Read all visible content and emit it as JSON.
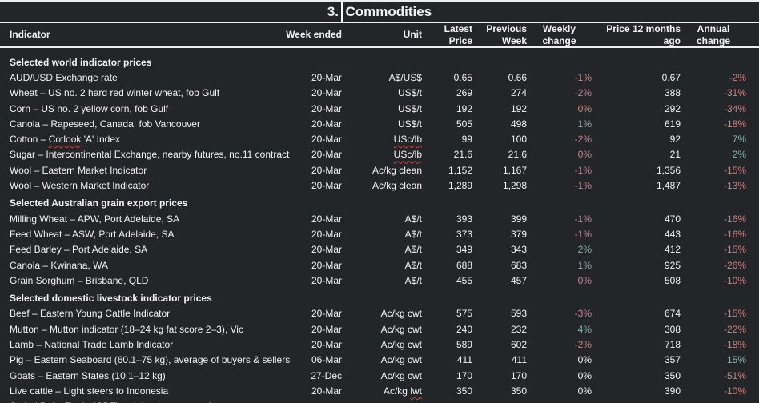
{
  "title": {
    "prefix": "3.",
    "rest": "Commodities"
  },
  "colors": {
    "background": "#232629",
    "text": "#f2f2f2",
    "rule": "#ededed",
    "negative": "#cd8080",
    "positive": "#85b3b0",
    "neutral": "#f2f2f2",
    "squiggle": "#bf4a42",
    "caret": "#ffffff"
  },
  "columns": [
    {
      "key": "indicator",
      "lines": [
        "Indicator"
      ],
      "align": "left"
    },
    {
      "key": "week",
      "lines": [
        "Week ended"
      ],
      "align": "right"
    },
    {
      "key": "unit",
      "lines": [
        "Unit"
      ],
      "align": "right"
    },
    {
      "key": "latest",
      "lines": [
        "Latest",
        "Price"
      ],
      "align": "right"
    },
    {
      "key": "previous",
      "lines": [
        "Previous",
        "Week"
      ],
      "align": "right"
    },
    {
      "key": "weekly",
      "lines": [
        "Weekly",
        "change"
      ],
      "align": "right",
      "header_align": "center"
    },
    {
      "key": "price12",
      "lines": [
        "Price 12 months",
        "ago"
      ],
      "align": "right"
    },
    {
      "key": "annual",
      "lines": [
        "Annual",
        "change"
      ],
      "align": "right",
      "header_align": "center"
    }
  ],
  "rows": [
    {
      "type": "section",
      "label": "Selected world indicator prices"
    },
    {
      "type": "data",
      "indicator": "AUD/USD Exchange rate",
      "week": "20-Mar",
      "unit": "A$/US$",
      "latest": "0.65",
      "previous": "0.66",
      "weekly": "-1%",
      "weekly_tone": "negative",
      "price12": "0.67",
      "annual": "-2%",
      "annual_tone": "negative"
    },
    {
      "type": "data",
      "indicator": "Wheat – US no. 2 hard red winter wheat, fob Gulf",
      "week": "20-Mar",
      "unit": "US$/t",
      "latest": "269",
      "previous": "274",
      "weekly": "-2%",
      "weekly_tone": "negative",
      "price12": "388",
      "annual": "-31%",
      "annual_tone": "negative"
    },
    {
      "type": "data",
      "indicator": "Corn – US no. 2 yellow corn, fob Gulf",
      "week": "20-Mar",
      "unit": "US$/t",
      "latest": "192",
      "previous": "192",
      "weekly": "0%",
      "weekly_tone": "negative",
      "price12": "292",
      "annual": "-34%",
      "annual_tone": "negative"
    },
    {
      "type": "data",
      "indicator": "Canola – Rapeseed, Canada, fob Vancouver",
      "week": "20-Mar",
      "unit": "US$/t",
      "latest": "505",
      "previous": "498",
      "weekly": "1%",
      "weekly_tone": "positive",
      "price12": "619",
      "annual": "-18%",
      "annual_tone": "negative"
    },
    {
      "type": "data",
      "indicator": "Cotton – Cotlook 'A' Index",
      "indicator_mark": "Cotlook",
      "week": "20-Mar",
      "unit": "USc/lb",
      "unit_mark": "USc/lb",
      "latest": "99",
      "previous": "100",
      "weekly": "-2%",
      "weekly_tone": "negative",
      "price12": "92",
      "annual": "7%",
      "annual_tone": "positive"
    },
    {
      "type": "data",
      "indicator": "Sugar – Intercontinental Exchange, nearby futures, no.11 contract",
      "week": "20-Mar",
      "unit": "USc/lb",
      "unit_mark": "USc/lb",
      "latest": "21.6",
      "previous": "21.6",
      "weekly": "0%",
      "weekly_tone": "negative",
      "price12": "21",
      "annual": "2%",
      "annual_tone": "positive"
    },
    {
      "type": "data",
      "indicator": "Wool – Eastern Market Indicator",
      "week": "20-Mar",
      "unit": "Ac/kg clean",
      "latest": "1,152",
      "previous": "1,167",
      "weekly": "-1%",
      "weekly_tone": "negative",
      "price12": "1,356",
      "annual": "-15%",
      "annual_tone": "negative"
    },
    {
      "type": "data",
      "indicator": "Wool – Western Market Indicator",
      "week": "20-Mar",
      "unit": "Ac/kg clean",
      "latest": "1,289",
      "previous": "1,298",
      "weekly": "-1%",
      "weekly_tone": "negative",
      "price12": "1,487",
      "annual": "-13%",
      "annual_tone": "negative"
    },
    {
      "type": "section",
      "label": "Selected Australian grain export prices"
    },
    {
      "type": "data",
      "indicator": "Milling Wheat – APW, Port Adelaide, SA",
      "week": "20-Mar",
      "unit": "A$/t",
      "latest": "393",
      "previous": "399",
      "weekly": "-1%",
      "weekly_tone": "negative",
      "price12": "470",
      "annual": "-16%",
      "annual_tone": "negative"
    },
    {
      "type": "data",
      "indicator": "Feed Wheat – ASW, Port Adelaide, SA",
      "week": "20-Mar",
      "unit": "A$/t",
      "latest": "373",
      "previous": "379",
      "weekly": "-1%",
      "weekly_tone": "negative",
      "price12": "443",
      "annual": "-16%",
      "annual_tone": "negative"
    },
    {
      "type": "data",
      "indicator": "Feed Barley – Port Adelaide, SA",
      "week": "20-Mar",
      "unit": "A$/t",
      "latest": "349",
      "previous": "343",
      "weekly": "2%",
      "weekly_tone": "positive",
      "price12": "412",
      "annual": "-15%",
      "annual_tone": "negative"
    },
    {
      "type": "data",
      "indicator": "Canola – Kwinana, WA",
      "week": "20-Mar",
      "unit": "A$/t",
      "latest": "688",
      "previous": "683",
      "weekly": "1%",
      "weekly_tone": "positive",
      "price12": "925",
      "annual": "-26%",
      "annual_tone": "negative"
    },
    {
      "type": "data",
      "indicator": "Grain Sorghum – Brisbane, QLD",
      "week": "20-Mar",
      "unit": "A$/t",
      "latest": "455",
      "previous": "457",
      "weekly": "0%",
      "weekly_tone": "negative",
      "price12": "508",
      "annual": "-10%",
      "annual_tone": "negative"
    },
    {
      "type": "section",
      "label": "Selected domestic livestock indicator prices"
    },
    {
      "type": "data",
      "indicator": "Beef – Eastern Young Cattle Indicator",
      "week": "20-Mar",
      "unit": "Ac/kg cwt",
      "latest": "575",
      "previous": "593",
      "weekly": "-3%",
      "weekly_tone": "negative",
      "price12": "674",
      "annual": "-15%",
      "annual_tone": "negative"
    },
    {
      "type": "data",
      "indicator": "Mutton – Mutton indicator (18–24 kg fat score 2–3), Vic",
      "week": "20-Mar",
      "unit": "Ac/kg cwt",
      "latest": "240",
      "previous": "232",
      "weekly": "4%",
      "weekly_tone": "positive",
      "price12": "308",
      "annual": "-22%",
      "annual_tone": "negative"
    },
    {
      "type": "data",
      "indicator": "Lamb – National Trade Lamb Indicator",
      "week": "20-Mar",
      "unit": "Ac/kg cwt",
      "latest": "589",
      "previous": "602",
      "weekly": "-2%",
      "weekly_tone": "negative",
      "price12": "718",
      "annual": "-18%",
      "annual_tone": "negative"
    },
    {
      "type": "data",
      "indicator": "Pig – Eastern Seaboard (60.1–75 kg), average of buyers & sellers",
      "week": "06-Mar",
      "unit": "Ac/kg cwt",
      "latest": "411",
      "previous": "411",
      "weekly": "0%",
      "weekly_tone": "neutral",
      "price12": "357",
      "annual": "15%",
      "annual_tone": "positive"
    },
    {
      "type": "data",
      "indicator": "Goats – Eastern States (10.1–12 kg)",
      "week": "27-Dec",
      "unit": "Ac/kg cwt",
      "latest": "170",
      "previous": "170",
      "weekly": "0%",
      "weekly_tone": "neutral",
      "price12": "350",
      "annual": "-51%",
      "annual_tone": "negative"
    },
    {
      "type": "data",
      "indicator": "Live cattle – Light steers to Indonesia",
      "week": "20-Mar",
      "unit": "Ac/kg lwt",
      "unit_mark": "lwt",
      "latest": "350",
      "previous": "350",
      "weekly": "0%",
      "weekly_tone": "neutral",
      "price12": "390",
      "annual": "-10%",
      "annual_tone": "negative"
    },
    {
      "type": "data",
      "indicator": "Global Dairy Trade (GDT) weighted average price",
      "week": "",
      "unit": "",
      "latest": "",
      "previous": "",
      "weekly": "",
      "weekly_tone": "neutral",
      "price12": "",
      "annual": "",
      "annual_tone": "neutral",
      "partial": true
    }
  ]
}
